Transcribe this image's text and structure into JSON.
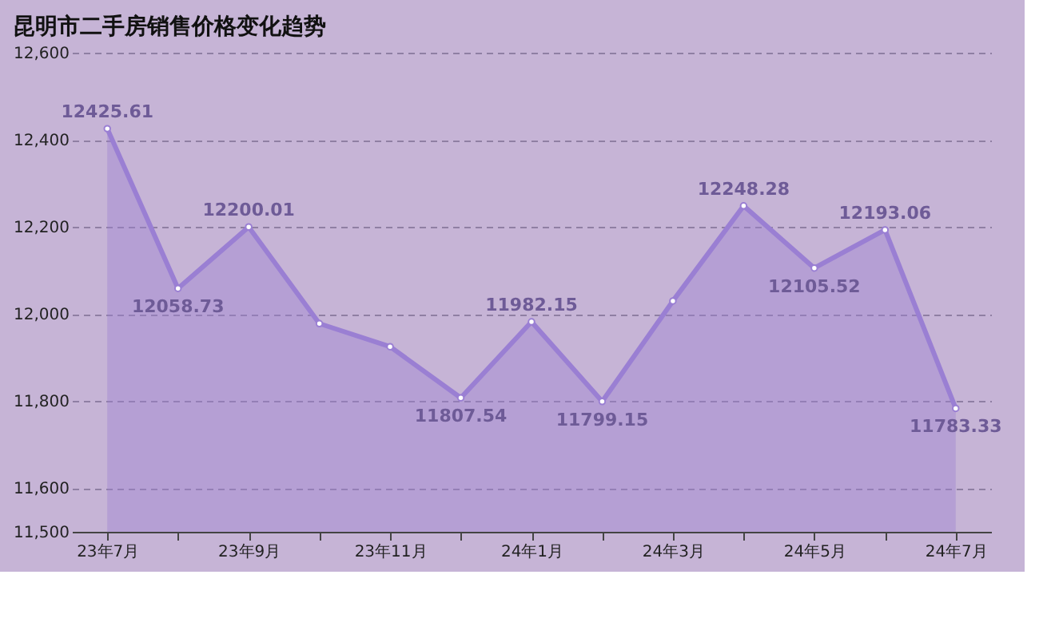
{
  "chart_data": {
    "type": "area",
    "title": "昆明市二手房销售价格变化趋势",
    "categories": [
      "23年7月",
      null,
      "23年9月",
      null,
      "23年11月",
      null,
      "24年1月",
      null,
      "24年3月",
      null,
      "24年5月",
      null,
      "24年7月"
    ],
    "series": [
      {
        "color": "#9a7fd3",
        "values": [
          12425.61,
          12058.73,
          12200.01,
          11978,
          11925,
          11807.54,
          11982.15,
          11799.15,
          12030,
          12248.28,
          12105.52,
          12193.06,
          11783.33
        ],
        "value_labels": [
          "12425.61",
          "12058.73",
          "12200.01",
          null,
          null,
          "11807.54",
          "11982.15",
          "11799.15",
          null,
          "12248.28",
          "12105.52",
          "12193.06",
          "11783.33"
        ]
      }
    ],
    "ylim": [
      11500,
      12600
    ],
    "yticks": [
      {
        "value": 11500,
        "label": "11,500"
      },
      {
        "value": 11600,
        "label": "11,600"
      },
      {
        "value": 11800,
        "label": "11,800"
      },
      {
        "value": 12000,
        "label": "12,000"
      },
      {
        "value": 12200,
        "label": "12,200"
      },
      {
        "value": 12400,
        "label": "12,400"
      },
      {
        "value": 12600,
        "label": "12,600"
      }
    ],
    "grid": "y",
    "marker": "circle",
    "line_style": "solid"
  }
}
